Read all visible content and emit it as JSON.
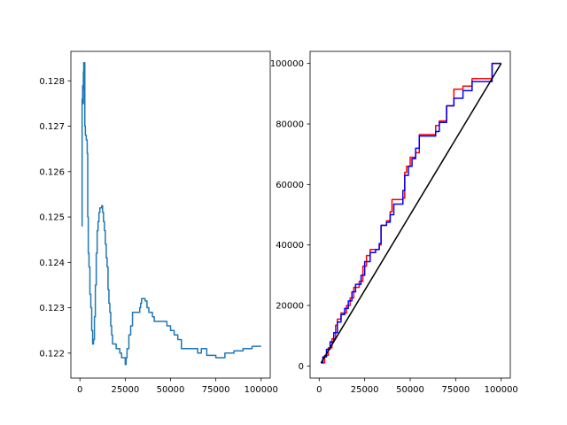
{
  "chart_data": [
    {
      "type": "line",
      "title": "",
      "xlabel": "",
      "ylabel": "",
      "xlim": [
        -5000,
        105000
      ],
      "ylim": [
        0.12145,
        0.12865
      ],
      "xticks": [
        0,
        25000,
        50000,
        75000,
        100000
      ],
      "xtick_labels": [
        "0",
        "25000",
        "50000",
        "75000",
        "100000"
      ],
      "yticks": [
        0.122,
        0.123,
        0.124,
        0.125,
        0.126,
        0.127,
        0.128
      ],
      "ytick_labels": [
        "0.122",
        "0.123",
        "0.124",
        "0.125",
        "0.126",
        "0.127",
        "0.128"
      ],
      "grid": false,
      "series": [
        {
          "color": "#1f77b4",
          "step": true,
          "points": [
            [
              1000,
              0.1248
            ],
            [
              1200,
              0.1276
            ],
            [
              1500,
              0.1279
            ],
            [
              1700,
              0.1275
            ],
            [
              1900,
              0.1282
            ],
            [
              2100,
              0.1284
            ],
            [
              2300,
              0.1278
            ],
            [
              2500,
              0.1284
            ],
            [
              2700,
              0.127
            ],
            [
              3000,
              0.1268
            ],
            [
              3500,
              0.1267
            ],
            [
              4000,
              0.1264
            ],
            [
              4300,
              0.125
            ],
            [
              4600,
              0.1242
            ],
            [
              5000,
              0.1239
            ],
            [
              5500,
              0.1233
            ],
            [
              6000,
              0.123
            ],
            [
              6500,
              0.1225
            ],
            [
              7000,
              0.1222
            ],
            [
              7500,
              0.1223
            ],
            [
              8000,
              0.1228
            ],
            [
              8500,
              0.1235
            ],
            [
              9000,
              0.1242
            ],
            [
              9500,
              0.1247
            ],
            [
              10000,
              0.1249
            ],
            [
              10500,
              0.1251
            ],
            [
              11000,
              0.1252
            ],
            [
              12000,
              0.12525
            ],
            [
              12500,
              0.1251
            ],
            [
              13000,
              0.1249
            ],
            [
              13500,
              0.1247
            ],
            [
              14000,
              0.1244
            ],
            [
              14500,
              0.1241
            ],
            [
              15000,
              0.1239
            ],
            [
              15500,
              0.1234
            ],
            [
              16000,
              0.1231
            ],
            [
              16500,
              0.1229
            ],
            [
              17000,
              0.1226
            ],
            [
              17500,
              0.1224
            ],
            [
              18000,
              0.1222
            ],
            [
              19000,
              0.1222
            ],
            [
              20000,
              0.1221
            ],
            [
              21000,
              0.1221
            ],
            [
              22000,
              0.122
            ],
            [
              23000,
              0.1219
            ],
            [
              24000,
              0.1219
            ],
            [
              25000,
              0.12175
            ],
            [
              25500,
              0.1219
            ],
            [
              26000,
              0.1221
            ],
            [
              27000,
              0.1224
            ],
            [
              28000,
              0.1226
            ],
            [
              29000,
              0.1229
            ],
            [
              33000,
              0.123
            ],
            [
              33500,
              0.1231
            ],
            [
              34000,
              0.1232
            ],
            [
              36000,
              0.12315
            ],
            [
              37000,
              0.123
            ],
            [
              38000,
              0.1229
            ],
            [
              40000,
              0.1228
            ],
            [
              41000,
              0.1227
            ],
            [
              47000,
              0.1227
            ],
            [
              48000,
              0.1226
            ],
            [
              50000,
              0.1225
            ],
            [
              52000,
              0.1224
            ],
            [
              54000,
              0.1223
            ],
            [
              56000,
              0.1221
            ],
            [
              60000,
              0.1221
            ],
            [
              65000,
              0.122
            ],
            [
              67000,
              0.1221
            ],
            [
              70000,
              0.12195
            ],
            [
              75000,
              0.1219
            ],
            [
              80000,
              0.122
            ],
            [
              85000,
              0.12205
            ],
            [
              88000,
              0.12205
            ],
            [
              90000,
              0.1221
            ],
            [
              95000,
              0.12215
            ],
            [
              100000,
              0.12215
            ]
          ]
        }
      ]
    },
    {
      "type": "line",
      "title": "",
      "xlabel": "",
      "ylabel": "",
      "xlim": [
        -5000,
        105000
      ],
      "ylim": [
        -4000,
        104000
      ],
      "xticks": [
        0,
        25000,
        50000,
        75000,
        100000
      ],
      "xtick_labels": [
        "0",
        "25000",
        "50000",
        "75000",
        "100000"
      ],
      "yticks": [
        0,
        20000,
        40000,
        60000,
        80000,
        100000
      ],
      "ytick_labels": [
        "0",
        "20000",
        "40000",
        "60000",
        "80000",
        "100000"
      ],
      "grid": false,
      "series": [
        {
          "color": "#ff0000",
          "step": true,
          "points": [
            [
              1000,
              1000
            ],
            [
              3000,
              3500
            ],
            [
              5000,
              6000
            ],
            [
              7000,
              9000
            ],
            [
              9000,
              13500
            ],
            [
              10000,
              15500
            ],
            [
              12000,
              17500
            ],
            [
              15000,
              20000
            ],
            [
              17000,
              22500
            ],
            [
              19000,
              26000
            ],
            [
              22000,
              28000
            ],
            [
              24000,
              33000
            ],
            [
              26000,
              36500
            ],
            [
              28000,
              38500
            ],
            [
              33000,
              40000
            ],
            [
              34000,
              46500
            ],
            [
              37000,
              48000
            ],
            [
              39000,
              51000
            ],
            [
              40000,
              55000
            ],
            [
              46000,
              55500
            ],
            [
              47000,
              64000
            ],
            [
              48000,
              66000
            ],
            [
              50000,
              69000
            ],
            [
              53000,
              70500
            ],
            [
              55000,
              76500
            ],
            [
              64000,
              79500
            ],
            [
              66000,
              81000
            ],
            [
              70000,
              86000
            ],
            [
              74000,
              91500
            ],
            [
              79000,
              92500
            ],
            [
              84000,
              95000
            ],
            [
              95000,
              100000
            ],
            [
              100000,
              100000
            ]
          ]
        },
        {
          "color": "#0000ff",
          "step": true,
          "points": [
            [
              1000,
              1000
            ],
            [
              2000,
              3000
            ],
            [
              4000,
              5500
            ],
            [
              6000,
              8000
            ],
            [
              8000,
              11000
            ],
            [
              10000,
              14500
            ],
            [
              12000,
              17000
            ],
            [
              14000,
              19000
            ],
            [
              16000,
              21500
            ],
            [
              18000,
              24500
            ],
            [
              20000,
              27000
            ],
            [
              23000,
              30000
            ],
            [
              25000,
              34500
            ],
            [
              28000,
              37500
            ],
            [
              31000,
              38500
            ],
            [
              33000,
              40500
            ],
            [
              34000,
              46500
            ],
            [
              37000,
              47500
            ],
            [
              39000,
              50000
            ],
            [
              41000,
              53500
            ],
            [
              46000,
              58000
            ],
            [
              47000,
              63000
            ],
            [
              49000,
              66000
            ],
            [
              51000,
              68500
            ],
            [
              53000,
              72000
            ],
            [
              55000,
              76000
            ],
            [
              64000,
              77500
            ],
            [
              66000,
              80500
            ],
            [
              70000,
              86000
            ],
            [
              74000,
              88500
            ],
            [
              79000,
              91000
            ],
            [
              84000,
              94000
            ],
            [
              95000,
              100000
            ],
            [
              100000,
              100000
            ]
          ]
        },
        {
          "color": "#000000",
          "step": false,
          "points": [
            [
              1000,
              1000
            ],
            [
              100000,
              100000
            ]
          ]
        }
      ]
    }
  ]
}
